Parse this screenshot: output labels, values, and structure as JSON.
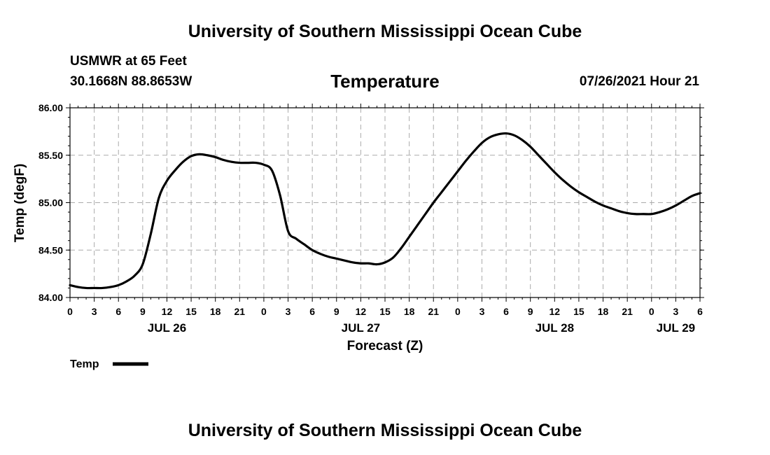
{
  "header": {
    "title": "University of Southern Mississippi Ocean Cube",
    "station": "USMWR at 65 Feet",
    "coords": "30.1668N  88.8653W",
    "variable": "Temperature",
    "issued": "07/26/2021 Hour 21"
  },
  "footer": {
    "title": "University of Southern Mississippi Ocean Cube"
  },
  "legend": {
    "label": "Temp"
  },
  "chart_data": {
    "type": "line",
    "title": "Temperature",
    "xlabel": "Forecast (Z)",
    "ylabel": "Temp (degF)",
    "ylim": [
      84.0,
      86.0
    ],
    "xlim": [
      0,
      78
    ],
    "y_ticks": [
      "84.00",
      "84.50",
      "85.00",
      "85.50",
      "86.00"
    ],
    "x_ticks": [
      {
        "hour": 0,
        "label": "0"
      },
      {
        "hour": 3,
        "label": "3"
      },
      {
        "hour": 6,
        "label": "6"
      },
      {
        "hour": 9,
        "label": "9"
      },
      {
        "hour": 12,
        "label": "12"
      },
      {
        "hour": 15,
        "label": "15"
      },
      {
        "hour": 18,
        "label": "18"
      },
      {
        "hour": 21,
        "label": "21"
      },
      {
        "hour": 24,
        "label": "0"
      },
      {
        "hour": 27,
        "label": "3"
      },
      {
        "hour": 30,
        "label": "6"
      },
      {
        "hour": 33,
        "label": "9"
      },
      {
        "hour": 36,
        "label": "12"
      },
      {
        "hour": 39,
        "label": "15"
      },
      {
        "hour": 42,
        "label": "18"
      },
      {
        "hour": 45,
        "label": "21"
      },
      {
        "hour": 48,
        "label": "0"
      },
      {
        "hour": 51,
        "label": "3"
      },
      {
        "hour": 54,
        "label": "6"
      },
      {
        "hour": 57,
        "label": "9"
      },
      {
        "hour": 60,
        "label": "12"
      },
      {
        "hour": 63,
        "label": "15"
      },
      {
        "hour": 66,
        "label": "18"
      },
      {
        "hour": 69,
        "label": "21"
      },
      {
        "hour": 72,
        "label": "0"
      },
      {
        "hour": 75,
        "label": "3"
      },
      {
        "hour": 78,
        "label": "6"
      }
    ],
    "date_labels": [
      {
        "hour": 12,
        "label": "JUL 26"
      },
      {
        "hour": 36,
        "label": "JUL 27"
      },
      {
        "hour": 60,
        "label": "JUL 28"
      },
      {
        "hour": 75,
        "label": "JUL 29"
      }
    ],
    "grid": true,
    "series": [
      {
        "name": "Temp",
        "color": "#000000",
        "x": [
          0,
          1,
          2,
          3,
          4,
          5,
          6,
          7,
          8,
          9,
          10,
          11,
          12,
          13,
          14,
          15,
          16,
          17,
          18,
          19,
          20,
          21,
          22,
          23,
          24,
          25,
          26,
          27,
          28,
          29,
          30,
          31,
          32,
          33,
          34,
          35,
          36,
          37,
          38,
          39,
          40,
          41,
          42,
          43,
          44,
          45,
          46,
          47,
          48,
          49,
          50,
          51,
          52,
          53,
          54,
          55,
          56,
          57,
          58,
          59,
          60,
          61,
          62,
          63,
          64,
          65,
          66,
          67,
          68,
          69,
          70,
          71,
          72,
          73,
          74,
          75,
          76,
          77,
          78
        ],
        "values": [
          84.13,
          84.11,
          84.1,
          84.1,
          84.1,
          84.11,
          84.13,
          84.17,
          84.23,
          84.35,
          84.67,
          85.05,
          85.23,
          85.34,
          85.43,
          85.49,
          85.51,
          85.5,
          85.48,
          85.45,
          85.43,
          85.42,
          85.42,
          85.42,
          85.4,
          85.34,
          85.08,
          84.7,
          84.62,
          84.56,
          84.5,
          84.46,
          84.43,
          84.41,
          84.39,
          84.37,
          84.36,
          84.36,
          84.35,
          84.37,
          84.42,
          84.52,
          84.64,
          84.76,
          84.88,
          85.0,
          85.11,
          85.22,
          85.33,
          85.44,
          85.54,
          85.63,
          85.69,
          85.72,
          85.73,
          85.71,
          85.66,
          85.59,
          85.5,
          85.41,
          85.32,
          85.24,
          85.17,
          85.11,
          85.06,
          85.01,
          84.97,
          84.94,
          84.91,
          84.89,
          84.88,
          84.88,
          84.88,
          84.9,
          84.93,
          84.97,
          85.02,
          85.07,
          85.1
        ]
      }
    ]
  }
}
